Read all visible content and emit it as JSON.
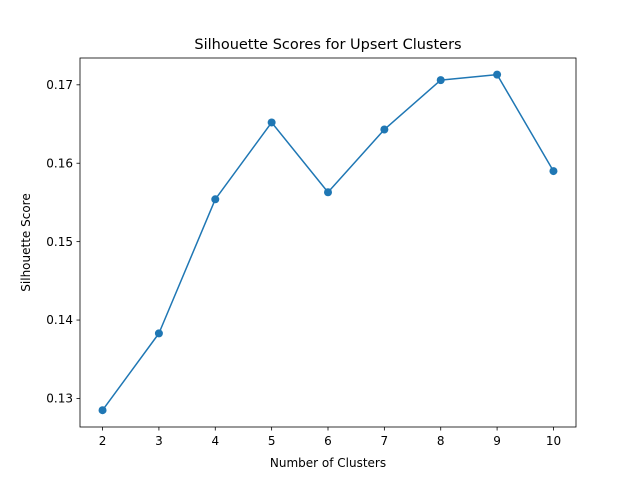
{
  "chart_data": {
    "type": "line",
    "title": "Silhouette Scores for Upsert Clusters",
    "xlabel": "Number of Clusters",
    "ylabel": "Silhouette Score",
    "x": [
      2,
      3,
      4,
      5,
      6,
      7,
      8,
      9,
      10
    ],
    "series": [
      {
        "values": [
          0.1285,
          0.1383,
          0.1554,
          0.1652,
          0.1563,
          0.1643,
          0.1706,
          0.1713,
          0.159
        ],
        "color": "#1f77b4",
        "marker": "circle"
      }
    ],
    "xticks": [
      "2",
      "3",
      "4",
      "5",
      "6",
      "7",
      "8",
      "9",
      "10"
    ],
    "yticks": [
      "0.13",
      "0.14",
      "0.15",
      "0.16",
      "0.17"
    ],
    "ytick_values": [
      0.13,
      0.14,
      0.15,
      0.16,
      0.17
    ],
    "xlim": [
      1.6,
      10.4
    ],
    "ylim": [
      0.12636,
      0.17342
    ],
    "grid": false,
    "legend": "none"
  }
}
